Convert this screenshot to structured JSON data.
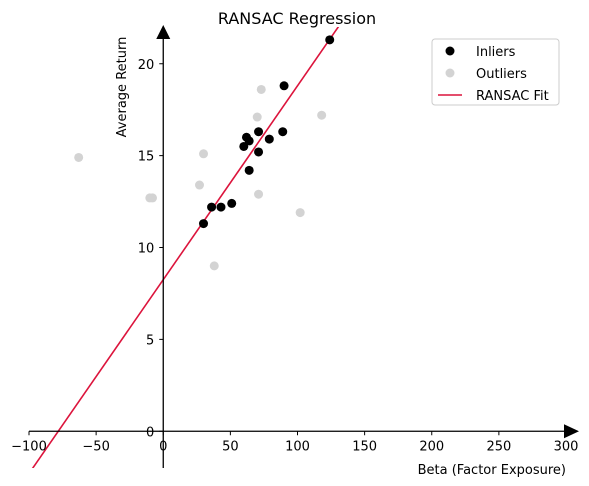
{
  "chart_data": {
    "type": "scatter",
    "title": "RANSAC Regression",
    "xlabel": "Beta (Factor Exposure)",
    "ylabel": "Average Return",
    "xlim": [
      -100,
      300
    ],
    "ylim": [
      -2,
      22
    ],
    "x_ticks": [
      -100,
      -50,
      0,
      50,
      100,
      150,
      200,
      250,
      300
    ],
    "x_tick_labels": [
      "−100",
      "−50",
      "0",
      "50",
      "100",
      "150",
      "200",
      "250",
      "300"
    ],
    "y_ticks": [
      0,
      5,
      10,
      15,
      20
    ],
    "y_tick_labels": [
      "0",
      "5",
      "10",
      "15",
      "20"
    ],
    "grid": false,
    "legend_position": "top-right",
    "series": [
      {
        "name": "Inliers",
        "color": "#000000",
        "points": [
          {
            "x": 124,
            "y": 21.3
          },
          {
            "x": 90,
            "y": 18.8
          },
          {
            "x": 71,
            "y": 16.3
          },
          {
            "x": 89,
            "y": 16.3
          },
          {
            "x": 62,
            "y": 16.0
          },
          {
            "x": 64,
            "y": 15.8
          },
          {
            "x": 79,
            "y": 15.9
          },
          {
            "x": 60,
            "y": 15.5
          },
          {
            "x": 71,
            "y": 15.2
          },
          {
            "x": 64,
            "y": 14.2
          },
          {
            "x": 36,
            "y": 12.2
          },
          {
            "x": 43,
            "y": 12.2
          },
          {
            "x": 51,
            "y": 12.4
          },
          {
            "x": 30,
            "y": 11.3
          }
        ]
      },
      {
        "name": "Outliers",
        "color": "#d3d3d3",
        "points": [
          {
            "x": -63,
            "y": 14.9
          },
          {
            "x": 30,
            "y": 15.1
          },
          {
            "x": 73,
            "y": 18.6
          },
          {
            "x": 70,
            "y": 17.1
          },
          {
            "x": 118,
            "y": 17.2
          },
          {
            "x": 27,
            "y": 13.4
          },
          {
            "x": -10,
            "y": 12.7
          },
          {
            "x": -8,
            "y": 12.7
          },
          {
            "x": 71,
            "y": 12.9
          },
          {
            "x": 102,
            "y": 11.9
          },
          {
            "x": 38,
            "y": 9.0
          }
        ]
      },
      {
        "name": "RANSAC Fit",
        "color": "#dc143c",
        "type": "line",
        "slope": 0.1055,
        "intercept": 8.25
      }
    ]
  }
}
